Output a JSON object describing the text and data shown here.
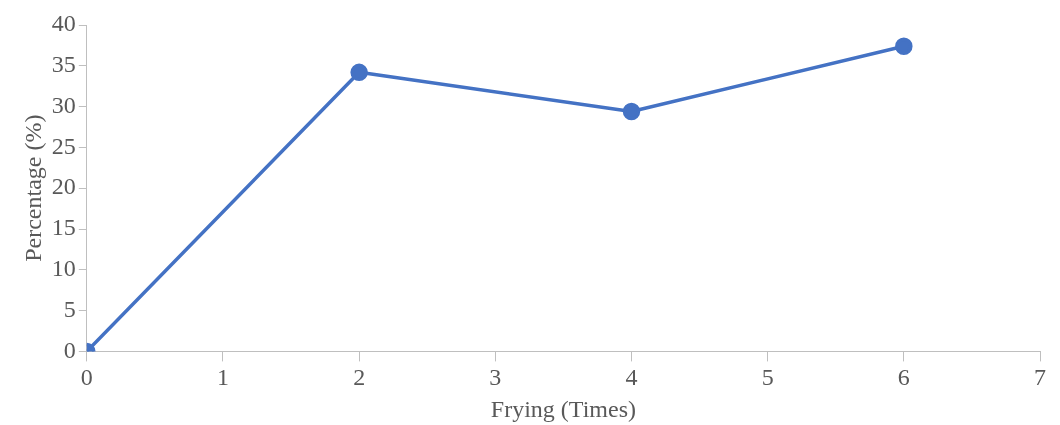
{
  "chart_data": {
    "type": "line",
    "xlabel": "Frying (Times)",
    "ylabel": "Percentage (%)",
    "x": [
      0,
      2,
      4,
      6
    ],
    "series": [
      {
        "color": "#4472c4",
        "values": [
          0,
          34.2,
          29.4,
          37.4
        ]
      }
    ],
    "xlim": [
      0,
      7
    ],
    "xticks": [
      0,
      1,
      2,
      3,
      4,
      5,
      6,
      7
    ],
    "ylim": [
      0,
      40
    ],
    "yticks": [
      0,
      5,
      10,
      15,
      20,
      25,
      30,
      35,
      40
    ],
    "grid": false,
    "legend": false,
    "marker": "circle",
    "line_style": "solid"
  }
}
